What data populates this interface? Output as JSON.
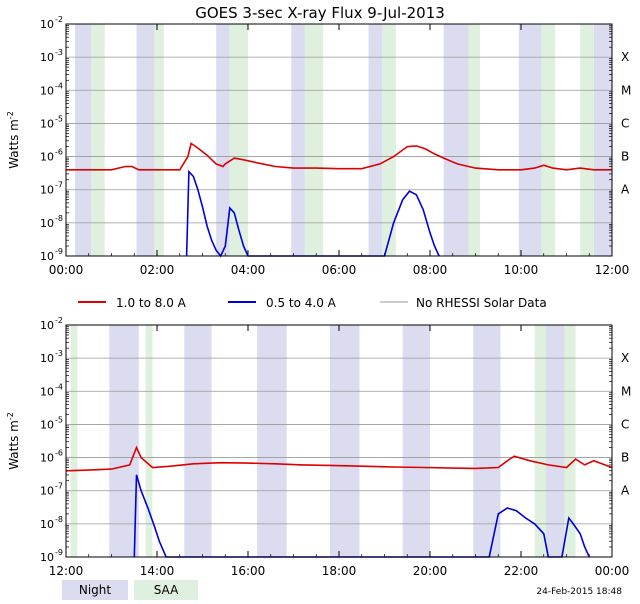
{
  "title": "GOES 3-sec X-ray Flux    9-Jul-2013",
  "ylabel": "Watts m",
  "ylabel_sup": "-2",
  "legend": [
    {
      "label": "1.0 to 8.0 A",
      "color": "#dd0000"
    },
    {
      "label": "0.5 to 4.0 A",
      "color": "#0000dd"
    },
    {
      "label": "No RHESSI Solar Data",
      "color": "#999999"
    }
  ],
  "bottom_legend": [
    {
      "label": "Night",
      "color": "#dcdcf0"
    },
    {
      "label": "SAA",
      "color": "#dff0df"
    }
  ],
  "timestamp": "24-Feb-2015 18:48",
  "flare_classes": [
    "X",
    "M",
    "C",
    "B",
    "A"
  ],
  "y_tick_labels": [
    "10",
    "10",
    "10",
    "10",
    "10",
    "10",
    "10",
    "10"
  ],
  "y_tick_exps": [
    "-2",
    "-3",
    "-4",
    "-5",
    "-6",
    "-7",
    "-8",
    "-9"
  ],
  "chart_data": [
    {
      "type": "line",
      "yscale": "log",
      "ylim": [
        1e-09,
        0.01
      ],
      "xlim": [
        0,
        12
      ],
      "x_tick_labels": [
        "00:00",
        "02:00",
        "04:00",
        "06:00",
        "08:00",
        "10:00",
        "12:00"
      ],
      "night": [
        [
          0.2,
          0.55
        ],
        [
          1.55,
          1.95
        ],
        [
          3.3,
          3.6
        ],
        [
          4.95,
          5.25
        ],
        [
          6.65,
          6.95
        ],
        [
          8.3,
          8.85
        ],
        [
          9.95,
          10.45
        ],
        [
          11.6,
          12.0
        ]
      ],
      "saa": [
        [
          0.55,
          0.85
        ],
        [
          1.95,
          2.15
        ],
        [
          3.6,
          4.0
        ],
        [
          5.25,
          5.65
        ],
        [
          6.95,
          7.25
        ],
        [
          8.85,
          9.1
        ],
        [
          10.45,
          10.75
        ],
        [
          11.3,
          11.6
        ]
      ],
      "series": [
        {
          "name": "1.0 to 8.0 A",
          "color": "#dd0000",
          "x": [
            0,
            0.5,
            1.0,
            1.3,
            1.45,
            1.6,
            2.0,
            2.5,
            2.68,
            2.75,
            2.9,
            3.1,
            3.3,
            3.45,
            3.5,
            3.7,
            3.9,
            4.2,
            4.6,
            5.0,
            5.5,
            6.0,
            6.5,
            6.9,
            7.2,
            7.5,
            7.7,
            7.9,
            8.1,
            8.3,
            8.6,
            9.0,
            9.5,
            10.0,
            10.3,
            10.5,
            10.7,
            11.0,
            11.3,
            11.6,
            12.0
          ],
          "y": [
            4e-07,
            4e-07,
            4e-07,
            5e-07,
            5e-07,
            4e-07,
            4e-07,
            4e-07,
            1e-06,
            2.5e-06,
            1.8e-06,
            1.1e-06,
            6e-07,
            5e-07,
            6e-07,
            9e-07,
            8e-07,
            6.5e-07,
            5e-07,
            4.5e-07,
            4.5e-07,
            4.3e-07,
            4.3e-07,
            6e-07,
            1e-06,
            2e-06,
            2.1e-06,
            1.7e-06,
            1.2e-06,
            9e-07,
            6e-07,
            4.5e-07,
            4e-07,
            4e-07,
            4.5e-07,
            5.5e-07,
            4.5e-07,
            4e-07,
            4.5e-07,
            4e-07,
            4e-07
          ]
        },
        {
          "name": "0.5 to 4.0 A",
          "color": "#0000dd",
          "x": [
            2.65,
            2.7,
            2.8,
            2.9,
            3.0,
            3.1,
            3.2,
            3.3,
            3.4,
            3.5,
            3.6,
            3.7,
            3.8,
            3.9,
            4.0,
            7.0,
            7.2,
            7.4,
            7.55,
            7.7,
            7.85,
            8.0,
            8.1,
            8.2
          ],
          "y": [
            1e-09,
            3.5e-07,
            2.5e-07,
            1e-07,
            3e-08,
            8e-09,
            3e-09,
            1.5e-09,
            1e-09,
            2e-09,
            2.8e-08,
            2e-08,
            6e-09,
            2e-09,
            1e-09,
            1e-09,
            1e-08,
            5e-08,
            9e-08,
            7e-08,
            2.5e-08,
            5e-09,
            2e-09,
            1e-09
          ]
        }
      ]
    },
    {
      "type": "line",
      "yscale": "log",
      "ylim": [
        1e-09,
        0.01
      ],
      "xlim": [
        12,
        24
      ],
      "x_tick_labels": [
        "12:00",
        "14:00",
        "16:00",
        "18:00",
        "20:00",
        "22:00",
        "00:00"
      ],
      "night": [
        [
          12.95,
          13.6
        ],
        [
          14.6,
          15.2
        ],
        [
          16.2,
          16.85
        ],
        [
          17.8,
          18.45
        ],
        [
          19.4,
          20.0
        ],
        [
          20.95,
          21.55
        ],
        [
          22.55,
          23.1
        ]
      ],
      "saa": [
        [
          12.1,
          12.25
        ],
        [
          13.75,
          13.9
        ],
        [
          22.3,
          22.55
        ],
        [
          22.95,
          23.2
        ]
      ],
      "series": [
        {
          "name": "1.0 to 8.0 A",
          "color": "#dd0000",
          "x": [
            12,
            12.5,
            13.0,
            13.4,
            13.55,
            13.65,
            13.9,
            14.3,
            14.8,
            15.4,
            16.0,
            16.6,
            17.2,
            17.8,
            18.5,
            19.2,
            19.9,
            20.5,
            21.0,
            21.5,
            21.7,
            21.85,
            22.2,
            22.6,
            23.0,
            23.2,
            23.4,
            23.6,
            24.0
          ],
          "y": [
            4e-07,
            4.2e-07,
            4.5e-07,
            6e-07,
            2e-06,
            1e-06,
            5e-07,
            5.5e-07,
            6.5e-07,
            7e-07,
            6.8e-07,
            6.5e-07,
            6e-07,
            5.8e-07,
            5.5e-07,
            5.2e-07,
            5e-07,
            4.8e-07,
            4.7e-07,
            5e-07,
            8e-07,
            1.1e-06,
            8e-07,
            6e-07,
            5e-07,
            9e-07,
            6e-07,
            8e-07,
            5e-07
          ]
        },
        {
          "name": "0.5 to 4.0 A",
          "color": "#0000dd",
          "x": [
            13.5,
            13.55,
            13.65,
            13.8,
            13.95,
            14.05,
            14.2,
            21.3,
            21.5,
            21.7,
            21.9,
            22.1,
            22.3,
            22.5,
            22.6,
            22.9,
            23.05,
            23.15,
            23.3,
            23.4,
            23.5
          ],
          "y": [
            1e-09,
            3e-07,
            1e-07,
            3e-08,
            8e-09,
            3e-09,
            1e-09,
            1e-09,
            2e-08,
            3e-08,
            2.5e-08,
            1.5e-08,
            1e-08,
            5e-09,
            1e-09,
            1e-09,
            1.5e-08,
            1e-08,
            5e-09,
            2e-09,
            1e-09
          ]
        }
      ]
    }
  ]
}
